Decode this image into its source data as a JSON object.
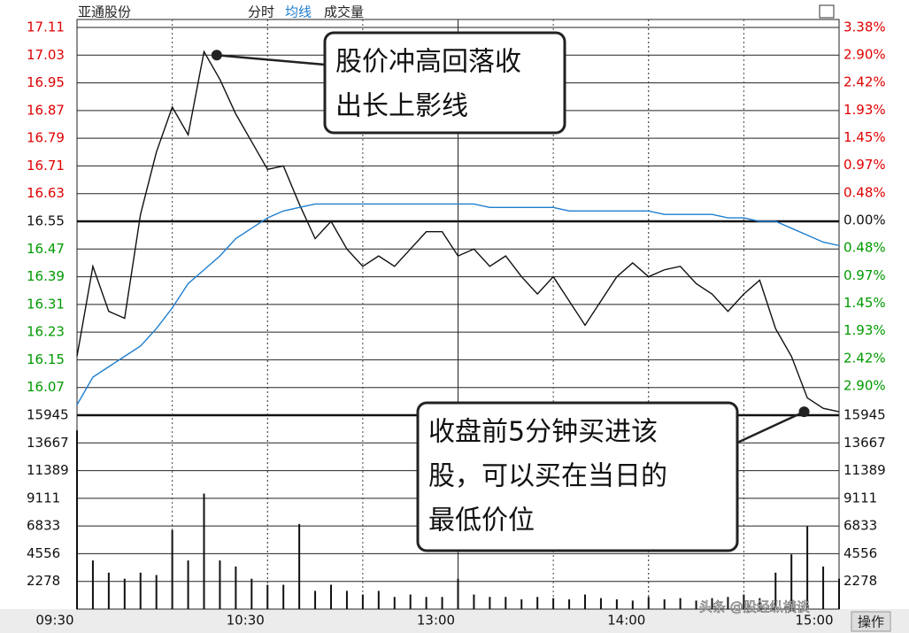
{
  "chart_data": {
    "type": "intraday",
    "header": {
      "stock": "亚通股份",
      "tabs": [
        "分时",
        "均线",
        "成交量"
      ]
    },
    "x": [
      0,
      5,
      10,
      15,
      20,
      25,
      30,
      35,
      40,
      45,
      50,
      55,
      60,
      65,
      70,
      75,
      80,
      85,
      90,
      95,
      100,
      105,
      110,
      115,
      120,
      125,
      130,
      135,
      140,
      145,
      150,
      155,
      160,
      165,
      170,
      175,
      180,
      185,
      190,
      195,
      200,
      205,
      210,
      215,
      220,
      225,
      230,
      235,
      240
    ],
    "xlim": [
      0,
      240
    ],
    "xticks": [
      {
        "value": 0,
        "label": "09:30"
      },
      {
        "value": 60,
        "label": "10:30"
      },
      {
        "value": 120,
        "label": "13:00"
      },
      {
        "value": 180,
        "label": "14:00"
      },
      {
        "value": 240,
        "label": "15:00"
      }
    ],
    "minor_xticks": [
      30,
      90,
      150,
      210
    ],
    "ylim": [
      15.99,
      17.11
    ],
    "yticks": [
      17.11,
      17.03,
      16.95,
      16.87,
      16.79,
      16.71,
      16.63,
      16.55,
      16.47,
      16.39,
      16.31,
      16.23,
      16.15,
      16.07
    ],
    "reference": 16.55,
    "y2lim": [
      -3.41,
      3.38
    ],
    "y2ticks": [
      {
        "value": 3.38,
        "label": "3.38%"
      },
      {
        "value": 2.9,
        "label": "2.90%"
      },
      {
        "value": 2.42,
        "label": "2.42%"
      },
      {
        "value": 1.93,
        "label": "1.93%"
      },
      {
        "value": 1.45,
        "label": "1.45%"
      },
      {
        "value": 0.97,
        "label": "0.97%"
      },
      {
        "value": 0.48,
        "label": "0.48%"
      },
      {
        "value": 0,
        "label": "0.00%"
      },
      {
        "value": -0.48,
        "label": "0.48%"
      },
      {
        "value": -0.97,
        "label": "0.97%"
      },
      {
        "value": -1.45,
        "label": "1.45%"
      },
      {
        "value": -1.93,
        "label": "1.93%"
      },
      {
        "value": -2.42,
        "label": "2.42%"
      },
      {
        "value": -2.9,
        "label": "2.90%"
      }
    ],
    "up_color": "#e00000",
    "down_color": "#009a00",
    "series": [
      {
        "name": "分时",
        "color": "#111111",
        "values": [
          16.16,
          16.42,
          16.29,
          16.27,
          16.57,
          16.75,
          16.88,
          16.8,
          17.04,
          16.96,
          16.86,
          16.78,
          16.7,
          16.71,
          16.6,
          16.5,
          16.55,
          16.47,
          16.42,
          16.45,
          16.42,
          16.47,
          16.52,
          16.52,
          16.45,
          16.47,
          16.42,
          16.45,
          16.39,
          16.34,
          16.39,
          16.32,
          16.25,
          16.32,
          16.39,
          16.43,
          16.39,
          16.41,
          16.42,
          16.37,
          16.34,
          16.29,
          16.34,
          16.38,
          16.24,
          16.16,
          16.04,
          16.01,
          16.0
        ]
      },
      {
        "name": "均线",
        "color": "#1f7fcf",
        "values": [
          16.02,
          16.1,
          16.13,
          16.16,
          16.19,
          16.24,
          16.3,
          16.37,
          16.41,
          16.45,
          16.5,
          16.53,
          16.56,
          16.58,
          16.59,
          16.6,
          16.6,
          16.6,
          16.6,
          16.6,
          16.6,
          16.6,
          16.6,
          16.6,
          16.6,
          16.6,
          16.59,
          16.59,
          16.59,
          16.59,
          16.59,
          16.58,
          16.58,
          16.58,
          16.58,
          16.58,
          16.58,
          16.57,
          16.57,
          16.57,
          16.57,
          16.56,
          16.56,
          16.55,
          16.55,
          16.53,
          16.51,
          16.49,
          16.48
        ]
      }
    ],
    "volume": {
      "name": "成交量",
      "color": "#111111",
      "ylim": [
        0,
        15945
      ],
      "yticks": [
        15945,
        13667,
        11389,
        9111,
        6833,
        4556,
        2278
      ],
      "values": [
        14700,
        4000,
        3000,
        2500,
        3000,
        2800,
        6500,
        4000,
        9500,
        4000,
        3500,
        2500,
        2000,
        2000,
        7000,
        1500,
        2000,
        1500,
        1200,
        1500,
        1000,
        1200,
        1000,
        1000,
        2500,
        1200,
        1000,
        1000,
        800,
        1000,
        900,
        800,
        1200,
        900,
        800,
        700,
        1000,
        800,
        900,
        700,
        900,
        1000,
        1200,
        900,
        3000,
        4500,
        6800,
        3500,
        2500
      ]
    },
    "annotations": [
      {
        "x": 44,
        "y": 17.03,
        "lines": [
          "股价冲高回落收",
          "出长上影线"
        ]
      },
      {
        "x": 229,
        "y": 16.0,
        "lines": [
          "收盘前5分钟买进该",
          "股，可以买在当日的",
          "最低价位"
        ]
      }
    ],
    "watermark": "头条 @股经纵横谈",
    "button": "操作"
  }
}
